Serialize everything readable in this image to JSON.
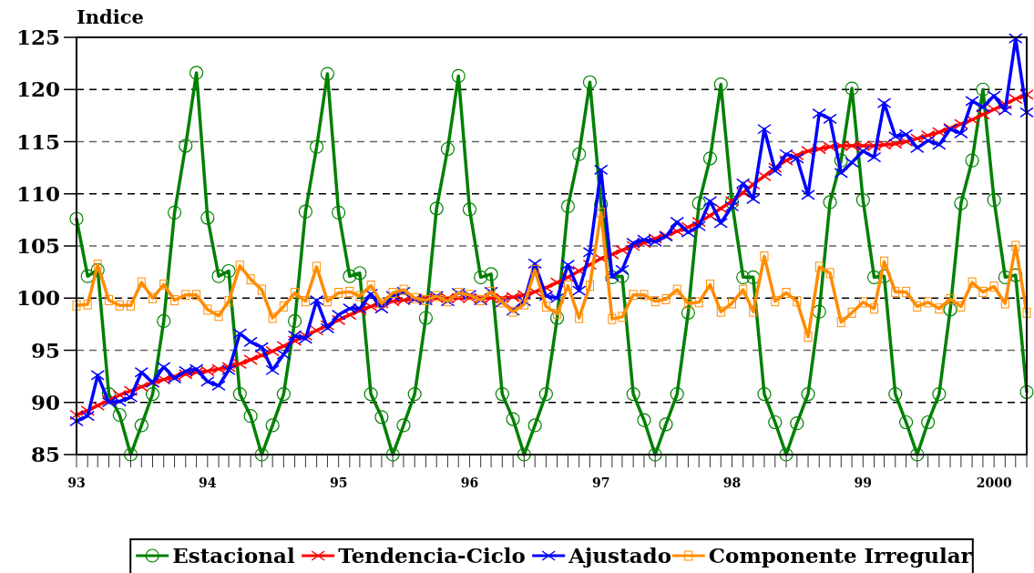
{
  "chart_data": {
    "type": "line",
    "ylabel": "Indice",
    "x": [
      "1993-01",
      "1993-02",
      "1993-03",
      "1993-04",
      "1993-05",
      "1993-06",
      "1993-07",
      "1993-08",
      "1993-09",
      "1993-10",
      "1993-11",
      "1993-12",
      "1994-01",
      "1994-02",
      "1994-03",
      "1994-04",
      "1994-05",
      "1994-06",
      "1994-07",
      "1994-08",
      "1994-09",
      "1994-10",
      "1994-11",
      "1994-12",
      "1995-01",
      "1995-02",
      "1995-03",
      "1995-04",
      "1995-05",
      "1995-06",
      "1995-07",
      "1995-08",
      "1995-09",
      "1995-10",
      "1995-11",
      "1995-12",
      "1996-01",
      "1996-02",
      "1996-03",
      "1996-04",
      "1996-05",
      "1996-06",
      "1996-07",
      "1996-08",
      "1996-09",
      "1996-10",
      "1996-11",
      "1996-12",
      "1997-01",
      "1997-02",
      "1997-03",
      "1997-04",
      "1997-05",
      "1997-06",
      "1997-07",
      "1997-08",
      "1997-09",
      "1997-10",
      "1997-11",
      "1997-12",
      "1998-01",
      "1998-02",
      "1998-03",
      "1998-04",
      "1998-05",
      "1998-06",
      "1998-07",
      "1998-08",
      "1998-09",
      "1998-10",
      "1998-11",
      "1998-12",
      "1999-01",
      "1999-02",
      "1999-03",
      "1999-04",
      "1999-05",
      "1999-06",
      "1999-07",
      "1999-08",
      "1999-09",
      "1999-10",
      "1999-11",
      "1999-12",
      "2000-01",
      "2000-02",
      "2000-03",
      "2000-04"
    ],
    "series": [
      {
        "name": "Estacional",
        "color": "#008000",
        "marker": "circle",
        "values": [
          107.6,
          102.1,
          102.7,
          90.8,
          88.8,
          85.0,
          87.8,
          90.8,
          97.8,
          108.2,
          114.6,
          121.6,
          107.7,
          102.1,
          102.6,
          90.8,
          88.7,
          85.0,
          87.8,
          90.8,
          97.8,
          108.3,
          114.5,
          121.5,
          108.2,
          102.1,
          102.4,
          90.8,
          88.6,
          85.0,
          87.8,
          90.8,
          98.1,
          108.6,
          114.3,
          121.3,
          108.5,
          102.0,
          102.3,
          90.8,
          88.4,
          85.0,
          87.8,
          90.8,
          98.1,
          108.8,
          113.8,
          120.7,
          109.0,
          102.0,
          102.1,
          90.8,
          88.3,
          85.0,
          87.9,
          90.8,
          98.6,
          109.1,
          113.4,
          120.5,
          109.2,
          102.0,
          102.0,
          90.8,
          88.1,
          85.0,
          88.0,
          90.8,
          98.7,
          109.2,
          113.2,
          120.1,
          109.4,
          102.0,
          102.1,
          90.8,
          88.1,
          85.0,
          88.1,
          90.8,
          98.9,
          109.1,
          113.2,
          120.0,
          109.4,
          102.0,
          102.2,
          91.0
        ]
      },
      {
        "name": "Tendencia-Ciclo",
        "color": "#ff0000",
        "marker": "cross",
        "values": [
          88.8,
          89.2,
          89.7,
          90.2,
          90.7,
          91.1,
          91.5,
          91.9,
          92.2,
          92.5,
          92.7,
          92.9,
          93.0,
          93.2,
          93.4,
          93.7,
          94.1,
          94.5,
          94.9,
          95.4,
          95.9,
          96.4,
          96.9,
          97.4,
          97.9,
          98.4,
          98.8,
          99.2,
          99.5,
          99.7,
          99.8,
          99.9,
          100.0,
          100.0,
          100.0,
          100.0,
          100.0,
          100.0,
          100.0,
          100.0,
          100.1,
          100.3,
          100.6,
          101.0,
          101.5,
          102.0,
          102.6,
          103.2,
          103.8,
          104.2,
          104.6,
          105.0,
          105.3,
          105.7,
          106.0,
          106.4,
          106.8,
          107.3,
          107.9,
          108.6,
          109.3,
          110.1,
          110.9,
          111.7,
          112.5,
          113.2,
          113.7,
          114.1,
          114.3,
          114.5,
          114.6,
          114.6,
          114.6,
          114.6,
          114.7,
          114.8,
          115.0,
          115.3,
          115.6,
          115.9,
          116.3,
          116.7,
          117.1,
          117.6,
          118.1,
          118.6,
          119.1,
          119.5
        ]
      },
      {
        "name": "Ajustado",
        "color": "#0000ff",
        "marker": "cross",
        "values": [
          88.2,
          88.7,
          92.6,
          90.0,
          90.1,
          90.5,
          92.9,
          91.9,
          93.4,
          92.3,
          93.0,
          93.2,
          92.0,
          91.6,
          93.1,
          96.6,
          95.8,
          95.3,
          93.1,
          94.6,
          96.4,
          96.1,
          99.8,
          97.1,
          98.4,
          99.0,
          99.0,
          100.4,
          99.0,
          100.2,
          100.6,
          99.9,
          99.8,
          100.2,
          99.7,
          100.5,
          100.3,
          99.8,
          100.6,
          99.6,
          98.8,
          99.7,
          103.3,
          100.2,
          100.0,
          103.2,
          100.7,
          104.4,
          112.3,
          102.1,
          102.7,
          105.3,
          105.6,
          105.4,
          105.9,
          107.3,
          106.3,
          106.9,
          109.3,
          107.2,
          108.8,
          111.0,
          109.5,
          116.2,
          112.2,
          113.8,
          113.4,
          109.9,
          117.7,
          117.2,
          112.0,
          113.0,
          114.1,
          113.5,
          118.7,
          115.5,
          115.7,
          114.4,
          115.1,
          114.7,
          116.2,
          115.8,
          118.9,
          118.3,
          119.4,
          118.0,
          124.9,
          117.8
        ]
      },
      {
        "name": "Componente Irregular",
        "color": "#ff8c00",
        "marker": "square",
        "values": [
          99.3,
          99.4,
          103.2,
          99.8,
          99.3,
          99.3,
          101.5,
          100.0,
          101.3,
          99.8,
          100.3,
          100.3,
          98.9,
          98.3,
          99.7,
          103.1,
          101.8,
          100.8,
          98.1,
          99.2,
          100.5,
          99.7,
          103.0,
          99.7,
          100.5,
          100.6,
          100.2,
          101.2,
          99.5,
          100.5,
          100.8,
          100.0,
          99.8,
          100.2,
          99.7,
          100.5,
          100.3,
          99.8,
          100.6,
          99.6,
          98.7,
          99.4,
          102.7,
          99.2,
          98.5,
          101.2,
          98.1,
          101.2,
          108.2,
          98.0,
          98.2,
          100.3,
          100.3,
          99.7,
          99.9,
          100.8,
          99.5,
          99.6,
          101.3,
          98.7,
          99.5,
          100.8,
          98.7,
          104.0,
          99.7,
          100.5,
          99.7,
          96.3,
          103.0,
          102.4,
          97.7,
          98.6,
          99.6,
          99.0,
          103.5,
          100.6,
          100.6,
          99.2,
          99.6,
          99.0,
          99.9,
          99.2,
          101.5,
          100.6,
          101.1,
          99.5,
          105.0,
          98.6
        ]
      }
    ],
    "xlim": [
      "1993-01",
      "2000-04"
    ],
    "xticks": [
      {
        "value": "1993-01",
        "label": "93"
      },
      {
        "value": "1993-02",
        "label": null
      },
      {
        "value": "1993-03",
        "label": null
      },
      {
        "value": "1993-04",
        "label": null
      },
      {
        "value": "1993-05",
        "label": null
      },
      {
        "value": "1993-06",
        "label": null
      },
      {
        "value": "1993-07",
        "label": null
      },
      {
        "value": "1993-08",
        "label": null
      },
      {
        "value": "1993-09",
        "label": null
      },
      {
        "value": "1993-10",
        "label": null
      },
      {
        "value": "1993-11",
        "label": null
      },
      {
        "value": "1993-12",
        "label": null
      },
      {
        "value": "1994-01",
        "label": "94"
      },
      {
        "value": "1994-02",
        "label": null
      },
      {
        "value": "1994-03",
        "label": null
      },
      {
        "value": "1994-04",
        "label": null
      },
      {
        "value": "1994-05",
        "label": null
      },
      {
        "value": "1994-06",
        "label": null
      },
      {
        "value": "1994-07",
        "label": null
      },
      {
        "value": "1994-08",
        "label": null
      },
      {
        "value": "1994-09",
        "label": null
      },
      {
        "value": "1994-10",
        "label": null
      },
      {
        "value": "1994-11",
        "label": null
      },
      {
        "value": "1994-12",
        "label": null
      },
      {
        "value": "1995-01",
        "label": "95"
      },
      {
        "value": "1995-02",
        "label": null
      },
      {
        "value": "1995-03",
        "label": null
      },
      {
        "value": "1995-04",
        "label": null
      },
      {
        "value": "1995-05",
        "label": null
      },
      {
        "value": "1995-06",
        "label": null
      },
      {
        "value": "1995-07",
        "label": null
      },
      {
        "value": "1995-08",
        "label": null
      },
      {
        "value": "1995-09",
        "label": null
      },
      {
        "value": "1995-10",
        "label": null
      },
      {
        "value": "1995-11",
        "label": null
      },
      {
        "value": "1995-12",
        "label": null
      },
      {
        "value": "1996-01",
        "label": "96"
      },
      {
        "value": "1996-02",
        "label": null
      },
      {
        "value": "1996-03",
        "label": null
      },
      {
        "value": "1996-04",
        "label": null
      },
      {
        "value": "1996-05",
        "label": null
      },
      {
        "value": "1996-06",
        "label": null
      },
      {
        "value": "1996-07",
        "label": null
      },
      {
        "value": "1996-08",
        "label": null
      },
      {
        "value": "1996-09",
        "label": null
      },
      {
        "value": "1996-10",
        "label": null
      },
      {
        "value": "1996-11",
        "label": null
      },
      {
        "value": "1996-12",
        "label": null
      },
      {
        "value": "1997-01",
        "label": "97"
      },
      {
        "value": "1997-02",
        "label": null
      },
      {
        "value": "1997-03",
        "label": null
      },
      {
        "value": "1997-04",
        "label": null
      },
      {
        "value": "1997-05",
        "label": null
      },
      {
        "value": "1997-06",
        "label": null
      },
      {
        "value": "1997-07",
        "label": null
      },
      {
        "value": "1997-08",
        "label": null
      },
      {
        "value": "1997-09",
        "label": null
      },
      {
        "value": "1997-10",
        "label": null
      },
      {
        "value": "1997-11",
        "label": null
      },
      {
        "value": "1997-12",
        "label": null
      },
      {
        "value": "1998-01",
        "label": "98"
      },
      {
        "value": "1998-02",
        "label": null
      },
      {
        "value": "1998-03",
        "label": null
      },
      {
        "value": "1998-04",
        "label": null
      },
      {
        "value": "1998-05",
        "label": null
      },
      {
        "value": "1998-06",
        "label": null
      },
      {
        "value": "1998-07",
        "label": null
      },
      {
        "value": "1998-08",
        "label": null
      },
      {
        "value": "1998-09",
        "label": null
      },
      {
        "value": "1998-10",
        "label": null
      },
      {
        "value": "1998-11",
        "label": null
      },
      {
        "value": "1998-12",
        "label": null
      },
      {
        "value": "1999-01",
        "label": "99"
      },
      {
        "value": "1999-02",
        "label": null
      },
      {
        "value": "1999-03",
        "label": null
      },
      {
        "value": "1999-04",
        "label": null
      },
      {
        "value": "1999-05",
        "label": null
      },
      {
        "value": "1999-06",
        "label": null
      },
      {
        "value": "1999-07",
        "label": null
      },
      {
        "value": "1999-08",
        "label": null
      },
      {
        "value": "1999-09",
        "label": null
      },
      {
        "value": "1999-10",
        "label": null
      },
      {
        "value": "1999-11",
        "label": null
      },
      {
        "value": "1999-12",
        "label": null
      },
      {
        "value": "2000-01",
        "label": "2000"
      },
      {
        "value": "2000-02",
        "label": null
      },
      {
        "value": "2000-03",
        "label": null
      },
      {
        "value": "2000-04",
        "label": null
      }
    ],
    "ylim": [
      85,
      125
    ],
    "yticks": [
      85,
      90,
      95,
      100,
      105,
      110,
      115,
      120,
      125
    ],
    "grid": "y",
    "legend": "bottom",
    "line_style": "solid"
  }
}
